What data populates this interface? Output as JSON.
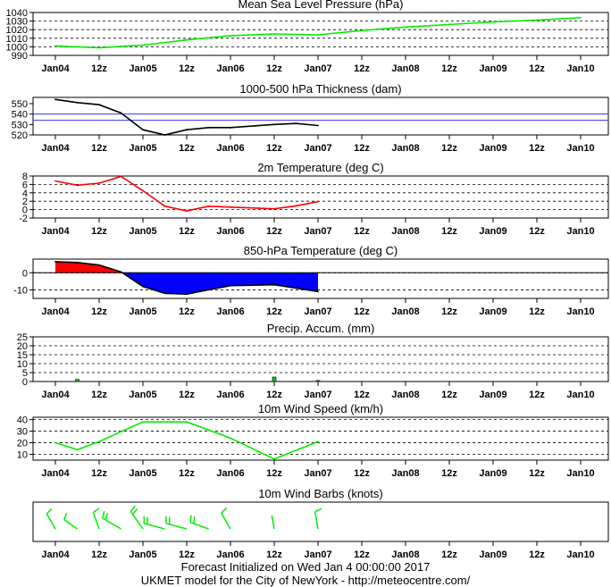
{
  "footer": {
    "line1": "Forecast Initialized on Wed Jan  4 00:00:00 2017",
    "line2": "UKMET model for the City of NewYork - http://meteocentre.com/"
  },
  "x_tick_labels": [
    "Jan04",
    "12z",
    "Jan05",
    "12z",
    "Jan06",
    "12z",
    "Jan07",
    "12z",
    "Jan08",
    "12z",
    "Jan09",
    "12z",
    "Jan10"
  ],
  "chart_data": [
    {
      "id": "mslp",
      "type": "line",
      "title": "Mean Sea Level Pressure (hPa)",
      "x_unit": "forecast hour",
      "xlim": [
        0,
        144
      ],
      "ylim": [
        990,
        1040
      ],
      "yticks": [
        990,
        1000,
        1010,
        1020,
        1030,
        1040
      ],
      "grid": true,
      "series": [
        {
          "color": "#00ee00",
          "x": [
            0,
            12,
            24,
            36,
            48,
            60,
            72,
            84,
            96,
            108,
            120,
            132,
            144
          ],
          "y": [
            1001,
            999,
            1002,
            1008,
            1013,
            1015,
            1014,
            1019,
            1023,
            1026,
            1029,
            1031,
            1034
          ]
        }
      ]
    },
    {
      "id": "thickness",
      "type": "line",
      "title": "1000-500 hPa Thickness (dam)",
      "x_unit": "forecast hour",
      "xlim": [
        0,
        144
      ],
      "ylim": [
        520,
        556
      ],
      "yticks": [
        520,
        530,
        540,
        550
      ],
      "grid": false,
      "reference_lines": [
        {
          "y": 540,
          "color": "#3333ff"
        },
        {
          "y": 534,
          "color": "#3333ff"
        }
      ],
      "series": [
        {
          "color": "#000000",
          "x": [
            0,
            6,
            12,
            18,
            24,
            30,
            36,
            42,
            48,
            60,
            66,
            72
          ],
          "y": [
            554,
            551,
            549,
            541,
            525,
            520,
            525,
            527,
            527,
            530,
            531,
            529
          ]
        }
      ]
    },
    {
      "id": "t2m",
      "type": "line",
      "title": "2m Temperature (deg C)",
      "x_unit": "forecast hour",
      "xlim": [
        0,
        144
      ],
      "ylim": [
        -2,
        8
      ],
      "yticks": [
        -2,
        0,
        2,
        4,
        6,
        8
      ],
      "grid": true,
      "series": [
        {
          "color": "#ff0000",
          "x": [
            0,
            6,
            12,
            18,
            24,
            30,
            36,
            42,
            48,
            60,
            66,
            72
          ],
          "y": [
            6.8,
            5.8,
            6.3,
            7.9,
            4.5,
            0.8,
            -0.3,
            0.8,
            0.6,
            0.2,
            0.9,
            1.9
          ]
        }
      ]
    },
    {
      "id": "t850",
      "type": "area",
      "title": "850-hPa Temperature (deg C)",
      "x_unit": "forecast hour",
      "xlim": [
        0,
        144
      ],
      "ylim": [
        -15,
        8
      ],
      "yticks": [
        -10,
        0
      ],
      "grid": true,
      "positive_color": "#ff0000",
      "negative_color": "#0000ff",
      "series": [
        {
          "color": "#000000",
          "x": [
            0,
            6,
            12,
            18,
            24,
            30,
            36,
            42,
            48,
            60,
            66,
            72
          ],
          "y": [
            6.5,
            6,
            4.5,
            0.5,
            -8,
            -12,
            -12.5,
            -10,
            -7.5,
            -7,
            -9,
            -11
          ]
        }
      ]
    },
    {
      "id": "precip",
      "type": "bar",
      "title": "Precip. Accum. (mm)",
      "x_unit": "forecast hour",
      "xlim": [
        0,
        144
      ],
      "ylim": [
        0,
        25
      ],
      "yticks": [
        0,
        5,
        10,
        15,
        20,
        25
      ],
      "grid": true,
      "bar_color": "#00cc00",
      "x": [
        6,
        60,
        72
      ],
      "values": [
        1.2,
        2.5,
        0.6
      ]
    },
    {
      "id": "wind",
      "type": "line",
      "title": "10m Wind Speed (km/h)",
      "x_unit": "forecast hour",
      "xlim": [
        0,
        144
      ],
      "ylim": [
        5,
        42
      ],
      "yticks": [
        10,
        20,
        30,
        40
      ],
      "grid": true,
      "series": [
        {
          "color": "#00ee00",
          "x": [
            0,
            6,
            12,
            24,
            36,
            48,
            60,
            72
          ],
          "y": [
            20,
            14,
            21,
            38,
            38,
            24,
            6,
            21
          ]
        }
      ]
    },
    {
      "id": "barbs",
      "type": "scatter",
      "title": "10m Wind Barbs  (knots)",
      "x_unit": "forecast hour",
      "xlim": [
        0,
        144
      ],
      "grid": false,
      "barb_color": "#00ee00",
      "x": [
        0,
        6,
        12,
        18,
        24,
        30,
        36,
        42,
        48,
        60,
        72
      ],
      "direction_deg": [
        330,
        305,
        340,
        300,
        325,
        285,
        285,
        290,
        330,
        350,
        350
      ],
      "speed_kt": [
        11,
        8,
        11,
        20,
        20,
        20,
        20,
        15,
        13,
        3,
        11
      ]
    }
  ]
}
